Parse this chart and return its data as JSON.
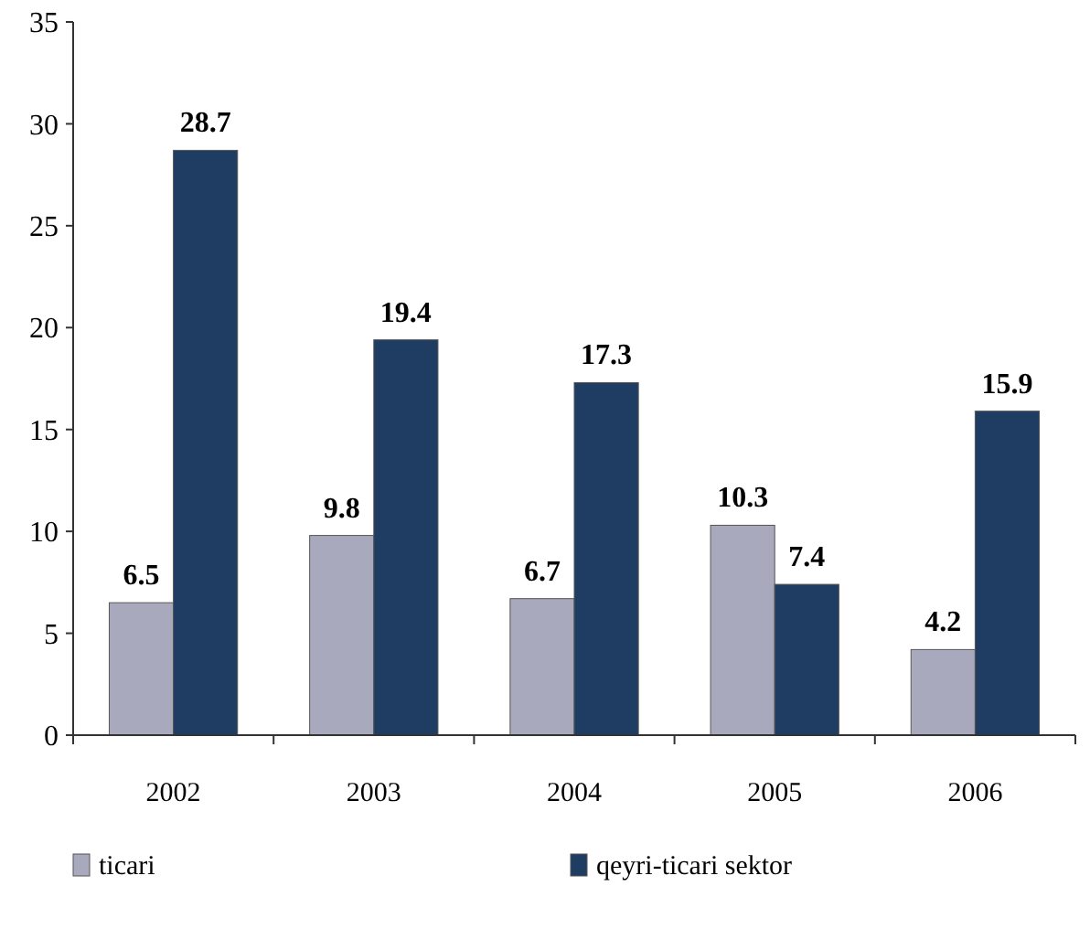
{
  "chart_data": {
    "type": "bar",
    "categories": [
      "2002",
      "2003",
      "2004",
      "2005",
      "2006"
    ],
    "series": [
      {
        "name": "ticari",
        "color": "#a9a9bd",
        "values": [
          6.5,
          9.8,
          6.7,
          10.3,
          4.2
        ]
      },
      {
        "name": "qeyri-ticari sektor",
        "color": "#1f3d63",
        "values": [
          28.7,
          19.4,
          17.3,
          7.4,
          15.9
        ]
      }
    ],
    "ylim": [
      0,
      35
    ],
    "yticks": [
      0,
      5,
      10,
      15,
      20,
      25,
      30,
      35
    ],
    "data_labels": true,
    "legend": "bottom",
    "grid": false
  }
}
